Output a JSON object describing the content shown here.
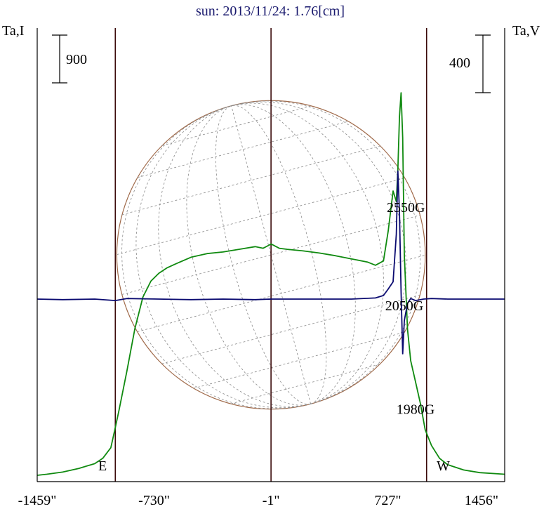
{
  "title": "sun: 2013/11/24: 1.76[cm]",
  "left_axis_label": "Ta,I",
  "right_axis_label": "Ta,V",
  "left_scale_label": "900",
  "right_scale_label": "400",
  "limb_labels": {
    "east": "E",
    "west": "W"
  },
  "colors": {
    "frame": "#000000",
    "title": "#1a1a6e",
    "limb_line": "#3a0a0a",
    "disk": "#a06a4a",
    "grid": "#8a8a8a",
    "intensity": "#108a10",
    "polarization": "#0a0a70"
  },
  "chart_data": {
    "type": "line",
    "xlabel": "",
    "x_tick_labels": [
      "-1459\"",
      "-730\"",
      "-1\"",
      "727\"",
      "1456\""
    ],
    "x_ticks": [
      -1459,
      -730,
      -1,
      727,
      1456
    ],
    "xlim": [
      -1459,
      1456
    ],
    "limb_positions": [
      -972,
      969
    ],
    "series": [
      {
        "name": "Ta,I",
        "axis": "left",
        "x": [
          -1459,
          -1400,
          -1300,
          -1200,
          -1100,
          -1050,
          -1000,
          -975,
          -950,
          -900,
          -850,
          -800,
          -750,
          -700,
          -650,
          -600,
          -500,
          -400,
          -300,
          -200,
          -100,
          -50,
          0,
          50,
          100,
          200,
          300,
          400,
          500,
          600,
          650,
          700,
          730,
          760,
          780,
          790,
          800,
          810,
          820,
          830,
          850,
          870,
          900,
          930,
          960,
          1000,
          1050,
          1100,
          1200,
          1300,
          1456
        ],
        "y": [
          40,
          60,
          100,
          170,
          260,
          360,
          560,
          900,
          1250,
          2000,
          2800,
          3400,
          3700,
          3850,
          3950,
          4020,
          4150,
          4220,
          4250,
          4300,
          4350,
          4320,
          4400,
          4320,
          4300,
          4270,
          4230,
          4180,
          4120,
          4060,
          4000,
          4080,
          4650,
          5400,
          5200,
          5800,
          6800,
          7250,
          6400,
          4200,
          2800,
          2200,
          1800,
          1400,
          900,
          600,
          360,
          240,
          140,
          90,
          60
        ]
      },
      {
        "name": "Ta,V",
        "axis": "right",
        "x": [
          -1459,
          -1300,
          -1100,
          -972,
          -900,
          -700,
          -500,
          -300,
          -100,
          0,
          100,
          300,
          500,
          650,
          700,
          730,
          760,
          780,
          790,
          800,
          810,
          820,
          830,
          850,
          870,
          900,
          950,
          1000,
          1100,
          1300,
          1456
        ],
        "y": [
          0,
          -4,
          0,
          -10,
          4,
          0,
          -4,
          0,
          -4,
          0,
          0,
          0,
          0,
          8,
          25,
          70,
          120,
          450,
          890,
          600,
          50,
          -380,
          -150,
          -30,
          4,
          -10,
          0,
          4,
          0,
          0,
          0
        ]
      }
    ],
    "annotations": [
      {
        "text": "2550G",
        "x": 840,
        "y_left": 5000
      },
      {
        "text": "2050G",
        "x": 830,
        "y_left": 3150
      },
      {
        "text": "1980G",
        "x": 900,
        "y_left": 1200
      }
    ]
  }
}
